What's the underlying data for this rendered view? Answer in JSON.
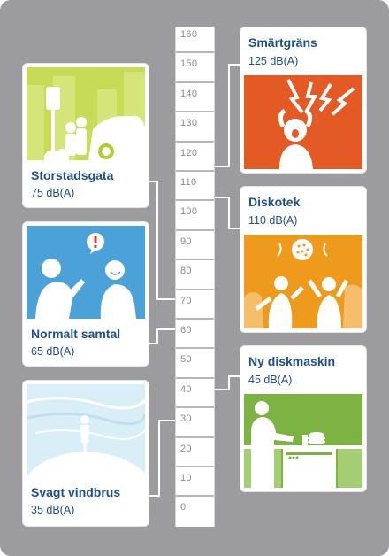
{
  "scale": {
    "ticks": [
      "160",
      "150",
      "140",
      "130",
      "120",
      "110",
      "100",
      "90",
      "80",
      "70",
      "60",
      "50",
      "40",
      "30",
      "20",
      "10",
      "0"
    ]
  },
  "cards": {
    "storstadsgata": {
      "title": "Storstadsgata",
      "level": "75 dB(A)"
    },
    "samtal": {
      "title": "Normalt samtal",
      "level": "65 dB(A)"
    },
    "vindbrus": {
      "title": "Svagt vindbrus",
      "level": "35 dB(A)"
    },
    "smartgrans": {
      "title": "Smärtgräns",
      "level": "125 dB(A)"
    },
    "diskotek": {
      "title": "Diskotek",
      "level": "110 dB(A)"
    },
    "diskmaskin": {
      "title": "Ny diskmaskin",
      "level": "45 dB(A)"
    }
  },
  "colors": {
    "background": "#9c9c9f",
    "title_text": "#1f4f8a",
    "street": "#b3cc2f",
    "conversation": "#4aa2d9",
    "wind": "#d9eef6",
    "pain": "#e35a24",
    "disco": "#ee9a1c",
    "dishwasher": "#7cb342"
  }
}
